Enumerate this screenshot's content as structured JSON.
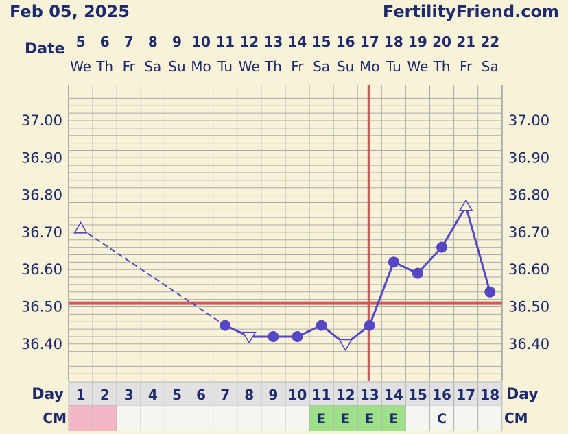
{
  "header": {
    "date": "Feb 05, 2025",
    "site": "FertilityFriend.com"
  },
  "chart_data": {
    "type": "line",
    "ylim": [
      36.3,
      37.1
    ],
    "y_ticks": [
      "37.00",
      "36.90",
      "36.80",
      "36.70",
      "36.60",
      "36.50",
      "36.40"
    ],
    "date_label": "Date",
    "dates": [
      "5",
      "6",
      "7",
      "8",
      "9",
      "10",
      "11",
      "12",
      "13",
      "14",
      "15",
      "16",
      "17",
      "18",
      "19",
      "20",
      "21",
      "22"
    ],
    "weekdays": [
      "We",
      "Th",
      "Fr",
      "Sa",
      "Su",
      "Mo",
      "Tu",
      "We",
      "Th",
      "Fr",
      "Sa",
      "Su",
      "Mo",
      "Tu",
      "We",
      "Th",
      "Fr",
      "Sa"
    ],
    "day_label": "Day",
    "days": [
      "1",
      "2",
      "3",
      "4",
      "5",
      "6",
      "7",
      "8",
      "9",
      "10",
      "11",
      "12",
      "13",
      "14",
      "15",
      "16",
      "17",
      "18"
    ],
    "cm_label": "CM",
    "cm": [
      "",
      "",
      "",
      "",
      "",
      "",
      "",
      "",
      "",
      "",
      "E",
      "E",
      "E",
      "E",
      "",
      "C",
      "",
      ""
    ],
    "cm_colors": [
      "#f2b8c6",
      "#f2b8c6",
      "",
      "",
      "",
      "",
      "",
      "",
      "",
      "",
      "#9ee08a",
      "#9ee08a",
      "#9ee08a",
      "#9ee08a",
      "",
      "",
      "",
      ""
    ],
    "temperatures": [
      {
        "day": 1,
        "temp": 36.71,
        "marker": "triangle-up",
        "connect": "dashed"
      },
      {
        "day": 7,
        "temp": 36.45,
        "marker": "circle"
      },
      {
        "day": 8,
        "temp": 36.42,
        "marker": "triangle-down"
      },
      {
        "day": 9,
        "temp": 36.42,
        "marker": "circle"
      },
      {
        "day": 10,
        "temp": 36.42,
        "marker": "circle"
      },
      {
        "day": 11,
        "temp": 36.45,
        "marker": "circle"
      },
      {
        "day": 12,
        "temp": 36.4,
        "marker": "triangle-down"
      },
      {
        "day": 13,
        "temp": 36.45,
        "marker": "circle"
      },
      {
        "day": 14,
        "temp": 36.62,
        "marker": "circle"
      },
      {
        "day": 15,
        "temp": 36.59,
        "marker": "circle"
      },
      {
        "day": 16,
        "temp": 36.66,
        "marker": "circle"
      },
      {
        "day": 17,
        "temp": 36.77,
        "marker": "triangle-up"
      },
      {
        "day": 18,
        "temp": 36.54,
        "marker": "circle"
      }
    ],
    "coverline": 36.51,
    "ovulation_day": 13,
    "colors": {
      "line": "#5546c4",
      "coverline": "#cf5a5a",
      "grid": "#aaaaaa",
      "text": "#1e2a6e"
    }
  }
}
